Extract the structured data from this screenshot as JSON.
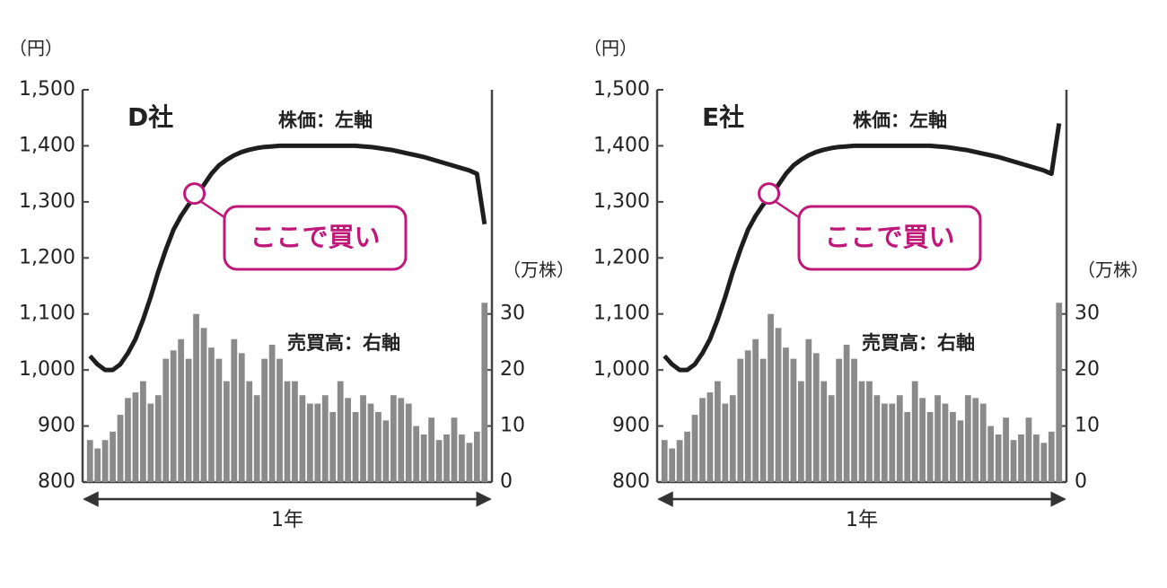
{
  "chart_data": [
    {
      "type": "bar_line",
      "title": "D社",
      "y_label": "（円）",
      "y2_label": "（万株）",
      "x_label": "1年",
      "ylim": [
        800,
        1500
      ],
      "yticks": [
        {
          "value": 800,
          "label": "800"
        },
        {
          "value": 900,
          "label": "900"
        },
        {
          "value": 1000,
          "label": "1,000"
        },
        {
          "value": 1100,
          "label": "1,100"
        },
        {
          "value": 1200,
          "label": "1,200"
        },
        {
          "value": 1300,
          "label": "1,300"
        },
        {
          "value": 1400,
          "label": "1,400"
        },
        {
          "value": 1500,
          "label": "1,500"
        }
      ],
      "y2lim": [
        0,
        70
      ],
      "y2ticks": [
        0,
        10,
        20,
        30
      ],
      "annotations": [
        "株価：左軸",
        "売買高：右軸",
        "ここで買い"
      ],
      "series": [
        {
          "name": "売買高",
          "kind": "bar",
          "axis": "y2",
          "color": "#8a8a8a",
          "values": [
            7.5,
            6,
            7.5,
            9,
            12,
            15,
            16,
            18,
            14,
            15.5,
            22,
            23.5,
            25.5,
            22,
            30,
            27.5,
            24,
            22,
            18,
            25.5,
            23,
            18,
            15.5,
            22,
            24.5,
            22,
            18,
            18,
            15.5,
            14,
            14,
            15.5,
            12.5,
            18,
            15,
            12.5,
            15.5,
            14,
            12.5,
            11,
            15.5,
            15,
            14,
            10,
            8.5,
            11.5,
            7.5,
            8.5,
            11.5,
            8.5,
            7,
            9,
            32
          ]
        },
        {
          "name": "株価",
          "kind": "line",
          "color": "#1e1e1e",
          "values": [
            1025,
            1010,
            1000,
            1000,
            1010,
            1030,
            1055,
            1090,
            1130,
            1175,
            1215,
            1250,
            1275,
            1295,
            1310,
            1330,
            1350,
            1365,
            1375,
            1383,
            1389,
            1393,
            1396,
            1398,
            1399,
            1400,
            1400,
            1400,
            1400,
            1400,
            1400,
            1400,
            1400,
            1400,
            1400,
            1400,
            1399,
            1398,
            1396,
            1394,
            1392,
            1389,
            1386,
            1383,
            1380,
            1376,
            1372,
            1368,
            1364,
            1360,
            1356,
            1350,
            1260
          ]
        }
      ]
    },
    {
      "type": "bar_line",
      "title": "E社",
      "y_label": "（円）",
      "y2_label": "（万株）",
      "x_label": "1年",
      "ylim": [
        800,
        1500
      ],
      "yticks": [
        {
          "value": 800,
          "label": "800"
        },
        {
          "value": 900,
          "label": "900"
        },
        {
          "value": 1000,
          "label": "1,000"
        },
        {
          "value": 1100,
          "label": "1,100"
        },
        {
          "value": 1200,
          "label": "1,200"
        },
        {
          "value": 1300,
          "label": "1,300"
        },
        {
          "value": 1400,
          "label": "1,400"
        },
        {
          "value": 1500,
          "label": "1,500"
        }
      ],
      "y2lim": [
        0,
        70
      ],
      "y2ticks": [
        0,
        10,
        20,
        30
      ],
      "annotations": [
        "株価：左軸",
        "売買高：右軸",
        "ここで買い"
      ],
      "series": [
        {
          "name": "売買高",
          "kind": "bar",
          "axis": "y2",
          "color": "#8a8a8a",
          "values": [
            7.5,
            6,
            7.5,
            9,
            12,
            15,
            16,
            18,
            14,
            15.5,
            22,
            23.5,
            25.5,
            22,
            30,
            27.5,
            24,
            22,
            18,
            25.5,
            23,
            18,
            15.5,
            22,
            24.5,
            22,
            18,
            18,
            15.5,
            14,
            14,
            15.5,
            12.5,
            18,
            15,
            12.5,
            15.5,
            14,
            12.5,
            11,
            15.5,
            15,
            14,
            10,
            8.5,
            11.5,
            7.5,
            8.5,
            11.5,
            8.5,
            7,
            9,
            32
          ]
        },
        {
          "name": "株価",
          "kind": "line",
          "color": "#1e1e1e",
          "values": [
            1025,
            1010,
            1000,
            1000,
            1010,
            1030,
            1055,
            1090,
            1130,
            1175,
            1215,
            1250,
            1275,
            1295,
            1310,
            1330,
            1350,
            1365,
            1375,
            1383,
            1389,
            1393,
            1396,
            1398,
            1399,
            1400,
            1400,
            1400,
            1400,
            1400,
            1400,
            1400,
            1400,
            1400,
            1400,
            1400,
            1399,
            1398,
            1396,
            1394,
            1392,
            1389,
            1386,
            1383,
            1380,
            1376,
            1372,
            1368,
            1364,
            1360,
            1356,
            1350,
            1440
          ]
        }
      ]
    }
  ]
}
